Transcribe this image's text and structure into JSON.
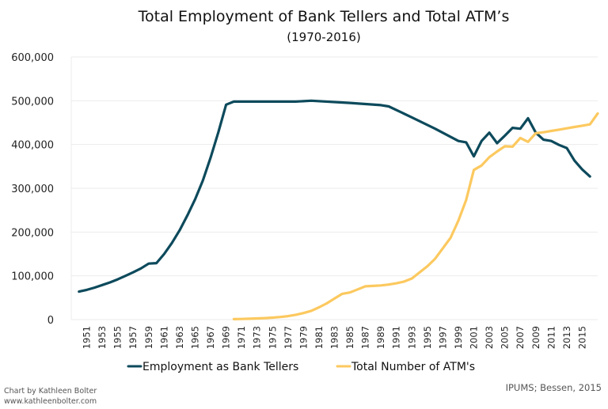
{
  "chart_data": {
    "type": "line",
    "title": "Total Employment of Bank Tellers and Total ATM’s",
    "subtitle": "(1970-2016)",
    "xlabel": "",
    "ylabel": "",
    "xlim": [
      1949,
      2017
    ],
    "ylim": [
      0,
      600000
    ],
    "yticks": [
      0,
      100000,
      200000,
      300000,
      400000,
      500000,
      600000
    ],
    "ytick_labels": [
      "0",
      "100,000",
      "200,000",
      "300,000",
      "400,000",
      "500,000",
      "600,000"
    ],
    "xtick_labels": [
      "1951",
      "1953",
      "1955",
      "1957",
      "1959",
      "1961",
      "1963",
      "1965",
      "1967",
      "1969",
      "1971",
      "1973",
      "1975",
      "1977",
      "1979",
      "1981",
      "1983",
      "1985",
      "1987",
      "1989",
      "1991",
      "1993",
      "1995",
      "1997",
      "1999",
      "2001",
      "2003",
      "2005",
      "2007",
      "2009",
      "2011",
      "2013",
      "2015"
    ],
    "grid": true,
    "legend_position": "bottom",
    "series": [
      {
        "name": "Employment as Bank Tellers",
        "color": "#0d4a5c",
        "points": [
          [
            1950,
            64000
          ],
          [
            1951,
            68000
          ],
          [
            1952,
            73000
          ],
          [
            1953,
            79000
          ],
          [
            1954,
            85000
          ],
          [
            1955,
            92000
          ],
          [
            1956,
            100000
          ],
          [
            1957,
            108000
          ],
          [
            1958,
            117000
          ],
          [
            1959,
            128000
          ],
          [
            1960,
            129000
          ],
          [
            1961,
            150000
          ],
          [
            1962,
            175000
          ],
          [
            1963,
            204000
          ],
          [
            1964,
            238000
          ],
          [
            1965,
            275000
          ],
          [
            1966,
            318000
          ],
          [
            1967,
            370000
          ],
          [
            1968,
            428000
          ],
          [
            1969,
            491000
          ],
          [
            1970,
            498000
          ],
          [
            1972,
            498000
          ],
          [
            1975,
            498000
          ],
          [
            1978,
            498000
          ],
          [
            1980,
            500000
          ],
          [
            1985,
            495000
          ],
          [
            1989,
            490000
          ],
          [
            1990,
            487000
          ],
          [
            1993,
            462000
          ],
          [
            1996,
            436000
          ],
          [
            1999,
            408000
          ],
          [
            2000,
            405000
          ],
          [
            2001,
            373000
          ],
          [
            2002,
            408000
          ],
          [
            2003,
            427000
          ],
          [
            2004,
            403000
          ],
          [
            2005,
            420000
          ],
          [
            2006,
            438000
          ],
          [
            2007,
            436000
          ],
          [
            2008,
            460000
          ],
          [
            2009,
            427000
          ],
          [
            2010,
            411000
          ],
          [
            2011,
            408000
          ],
          [
            2012,
            399000
          ],
          [
            2013,
            392000
          ],
          [
            2014,
            363000
          ],
          [
            2015,
            343000
          ],
          [
            2016,
            327000
          ]
        ]
      },
      {
        "name": "Total Number of ATM's",
        "color": "#fcc95f",
        "points": [
          [
            1970,
            1000
          ],
          [
            1971,
            1500
          ],
          [
            1972,
            2000
          ],
          [
            1973,
            2700
          ],
          [
            1974,
            3500
          ],
          [
            1975,
            4500
          ],
          [
            1976,
            6000
          ],
          [
            1977,
            8000
          ],
          [
            1978,
            11000
          ],
          [
            1979,
            15000
          ],
          [
            1980,
            20000
          ],
          [
            1981,
            28000
          ],
          [
            1982,
            37000
          ],
          [
            1983,
            48000
          ],
          [
            1984,
            59000
          ],
          [
            1985,
            62000
          ],
          [
            1986,
            69000
          ],
          [
            1987,
            76000
          ],
          [
            1988,
            77000
          ],
          [
            1989,
            78000
          ],
          [
            1990,
            80000
          ],
          [
            1991,
            83000
          ],
          [
            1992,
            87000
          ],
          [
            1993,
            94000
          ],
          [
            1994,
            108000
          ],
          [
            1995,
            122000
          ],
          [
            1996,
            139000
          ],
          [
            1997,
            163000
          ],
          [
            1998,
            187000
          ],
          [
            1999,
            226000
          ],
          [
            2000,
            273000
          ],
          [
            2001,
            342000
          ],
          [
            2002,
            352000
          ],
          [
            2003,
            371000
          ],
          [
            2004,
            384000
          ],
          [
            2005,
            396000
          ],
          [
            2006,
            395000
          ],
          [
            2007,
            415000
          ],
          [
            2008,
            406000
          ],
          [
            2009,
            426000
          ],
          [
            2010,
            428000
          ],
          [
            2011,
            431000
          ],
          [
            2012,
            434000
          ],
          [
            2013,
            437000
          ],
          [
            2014,
            440000
          ],
          [
            2015,
            443000
          ],
          [
            2016,
            446000
          ],
          [
            2017,
            471000
          ]
        ]
      }
    ]
  },
  "credits": {
    "line1": "Chart by Kathleen Bolter",
    "line2": "www.kathleenbolter.com",
    "source": "IPUMS; Bessen, 2015"
  }
}
